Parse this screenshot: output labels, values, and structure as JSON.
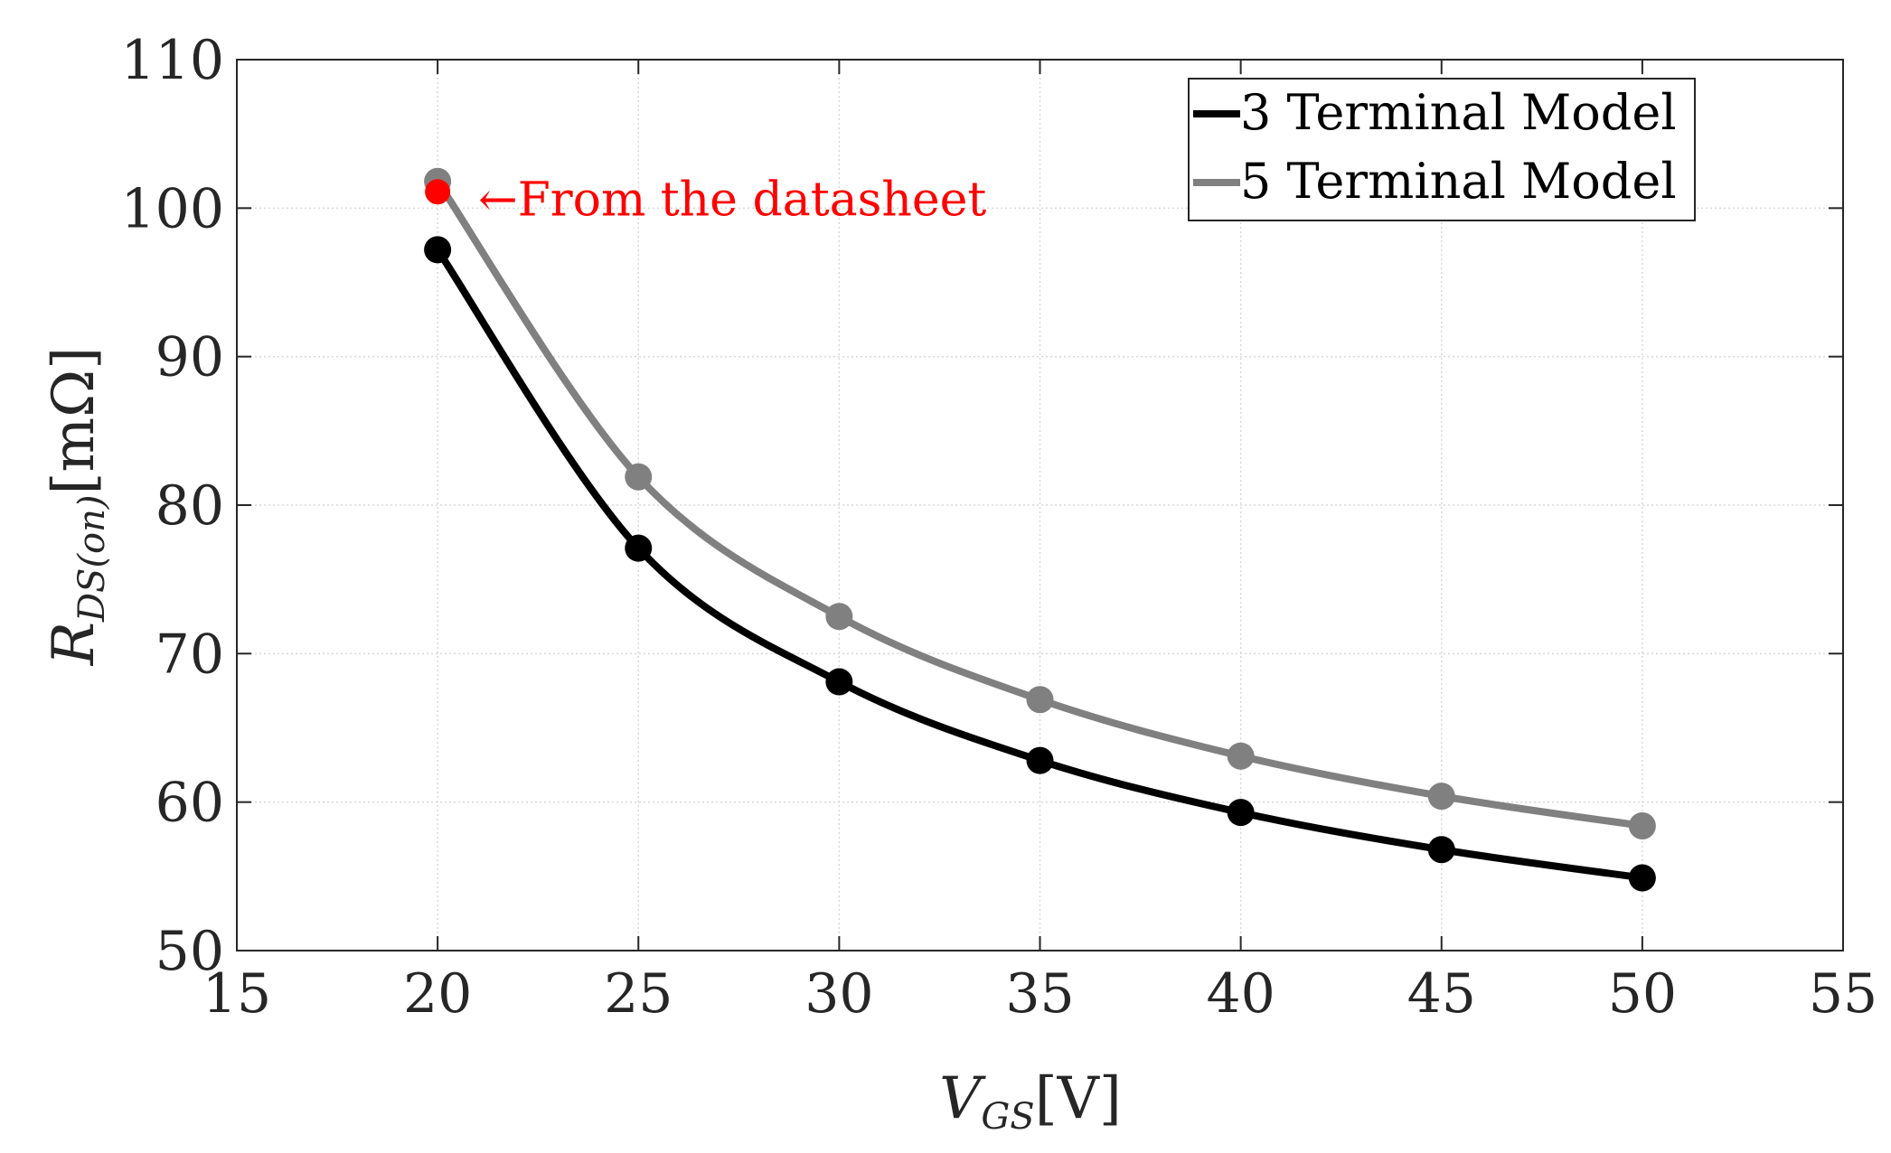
{
  "chart_data": {
    "type": "line",
    "title": "",
    "xlabel": {
      "main": "V",
      "sub": "GS",
      "unit": "[V]"
    },
    "ylabel": {
      "main": "R",
      "sub": "DS(on)",
      "unit": "[mΩ]"
    },
    "xlim": [
      15,
      55
    ],
    "ylim": [
      50,
      110
    ],
    "xticks": [
      15,
      20,
      25,
      30,
      35,
      40,
      45,
      50,
      55
    ],
    "yticks": [
      50,
      60,
      70,
      80,
      90,
      100,
      110
    ],
    "grid": true,
    "legend_position": "top-right",
    "x": [
      20,
      25,
      30,
      35,
      40,
      45,
      50
    ],
    "series": [
      {
        "name": "3 Terminal Model",
        "color": "#000000",
        "values": [
          97.2,
          77.1,
          68.1,
          62.8,
          59.3,
          56.8,
          54.9
        ]
      },
      {
        "name": "5 Terminal Model",
        "color": "#808080",
        "values": [
          101.8,
          81.9,
          72.5,
          66.9,
          63.1,
          60.4,
          58.4
        ]
      }
    ],
    "annotation": {
      "text": "←From the datasheet",
      "x": 20,
      "y": 101.1,
      "color": "#ff0000"
    }
  }
}
